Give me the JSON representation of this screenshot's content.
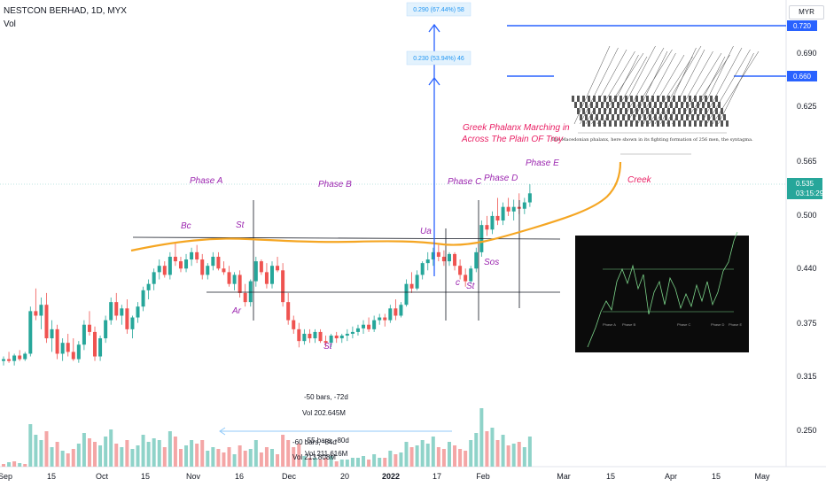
{
  "header": {
    "title": "NESTCON BERHAD, 1D, MYX",
    "vol_label": "Vol",
    "currency": "MYR"
  },
  "chart_data": {
    "type": "candlestick",
    "y_ticks": [
      "0.720",
      "0.690",
      "0.625",
      "0.565",
      "0.500",
      "0.440",
      "0.375",
      "0.315",
      "0.250"
    ],
    "x_ticks": [
      "Sep",
      "15",
      "Oct",
      "15",
      "Nov",
      "16",
      "Dec",
      "20",
      "2022",
      "17",
      "Feb",
      "Mar",
      "15",
      "Apr",
      "15",
      "May"
    ],
    "price_tags": [
      {
        "value": "0.720",
        "color": "#2962ff"
      },
      {
        "value": "0.660",
        "color": "#2962ff"
      },
      {
        "value": "0.535",
        "color": "#26a69a"
      },
      {
        "value": "03:15:29",
        "color": "#26a69a"
      }
    ],
    "candles": [
      [
        0.35,
        0.355,
        0.345,
        0.352
      ],
      [
        0.352,
        0.36,
        0.348,
        0.35
      ],
      [
        0.35,
        0.358,
        0.345,
        0.356
      ],
      [
        0.356,
        0.362,
        0.35,
        0.352
      ],
      [
        0.352,
        0.36,
        0.35,
        0.358
      ],
      [
        0.358,
        0.41,
        0.355,
        0.405
      ],
      [
        0.405,
        0.43,
        0.395,
        0.4
      ],
      [
        0.4,
        0.42,
        0.385,
        0.412
      ],
      [
        0.412,
        0.425,
        0.37,
        0.375
      ],
      [
        0.375,
        0.395,
        0.36,
        0.385
      ],
      [
        0.385,
        0.39,
        0.352,
        0.358
      ],
      [
        0.358,
        0.375,
        0.35,
        0.37
      ],
      [
        0.37,
        0.38,
        0.355,
        0.36
      ],
      [
        0.36,
        0.375,
        0.35,
        0.352
      ],
      [
        0.352,
        0.372,
        0.348,
        0.368
      ],
      [
        0.368,
        0.395,
        0.362,
        0.39
      ],
      [
        0.39,
        0.405,
        0.378,
        0.382
      ],
      [
        0.382,
        0.388,
        0.35,
        0.355
      ],
      [
        0.355,
        0.378,
        0.35,
        0.375
      ],
      [
        0.375,
        0.4,
        0.37,
        0.395
      ],
      [
        0.395,
        0.42,
        0.39,
        0.415
      ],
      [
        0.415,
        0.425,
        0.395,
        0.4
      ],
      [
        0.4,
        0.412,
        0.39,
        0.408
      ],
      [
        0.408,
        0.418,
        0.38,
        0.385
      ],
      [
        0.385,
        0.4,
        0.375,
        0.398
      ],
      [
        0.398,
        0.415,
        0.392,
        0.41
      ],
      [
        0.41,
        0.432,
        0.405,
        0.428
      ],
      [
        0.428,
        0.44,
        0.418,
        0.435
      ],
      [
        0.435,
        0.452,
        0.428,
        0.448
      ],
      [
        0.448,
        0.462,
        0.44,
        0.455
      ],
      [
        0.455,
        0.46,
        0.442,
        0.445
      ],
      [
        0.445,
        0.47,
        0.44,
        0.465
      ],
      [
        0.465,
        0.48,
        0.455,
        0.46
      ],
      [
        0.46,
        0.465,
        0.448,
        0.452
      ],
      [
        0.452,
        0.468,
        0.448,
        0.462
      ],
      [
        0.462,
        0.475,
        0.455,
        0.47
      ],
      [
        0.47,
        0.478,
        0.458,
        0.462
      ],
      [
        0.462,
        0.468,
        0.44,
        0.445
      ],
      [
        0.445,
        0.458,
        0.44,
        0.455
      ],
      [
        0.455,
        0.47,
        0.45,
        0.465
      ],
      [
        0.465,
        0.47,
        0.45,
        0.452
      ],
      [
        0.452,
        0.46,
        0.445,
        0.448
      ],
      [
        0.448,
        0.455,
        0.432,
        0.435
      ],
      [
        0.435,
        0.448,
        0.428,
        0.445
      ],
      [
        0.445,
        0.45,
        0.42,
        0.425
      ],
      [
        0.425,
        0.435,
        0.41,
        0.415
      ],
      [
        0.415,
        0.44,
        0.41,
        0.438
      ],
      [
        0.438,
        0.465,
        0.432,
        0.46
      ],
      [
        0.46,
        0.462,
        0.445,
        0.448
      ],
      [
        0.448,
        0.458,
        0.43,
        0.435
      ],
      [
        0.435,
        0.46,
        0.43,
        0.455
      ],
      [
        0.455,
        0.465,
        0.448,
        0.45
      ],
      [
        0.45,
        0.458,
        0.41,
        0.415
      ],
      [
        0.415,
        0.425,
        0.39,
        0.395
      ],
      [
        0.395,
        0.4,
        0.38,
        0.385
      ],
      [
        0.385,
        0.392,
        0.365,
        0.372
      ],
      [
        0.372,
        0.385,
        0.368,
        0.38
      ],
      [
        0.38,
        0.385,
        0.37,
        0.375
      ],
      [
        0.375,
        0.385,
        0.37,
        0.382
      ],
      [
        0.382,
        0.385,
        0.37,
        0.372
      ],
      [
        0.372,
        0.378,
        0.365,
        0.37
      ],
      [
        0.37,
        0.38,
        0.365,
        0.378
      ],
      [
        0.378,
        0.382,
        0.37,
        0.375
      ],
      [
        0.375,
        0.38,
        0.37,
        0.378
      ],
      [
        0.378,
        0.385,
        0.372,
        0.38
      ],
      [
        0.38,
        0.388,
        0.375,
        0.382
      ],
      [
        0.382,
        0.39,
        0.378,
        0.386
      ],
      [
        0.386,
        0.395,
        0.38,
        0.39
      ],
      [
        0.39,
        0.398,
        0.382,
        0.385
      ],
      [
        0.385,
        0.4,
        0.382,
        0.395
      ],
      [
        0.395,
        0.402,
        0.39,
        0.398
      ],
      [
        0.398,
        0.402,
        0.388,
        0.395
      ],
      [
        0.395,
        0.412,
        0.392,
        0.408
      ],
      [
        0.408,
        0.418,
        0.395,
        0.4
      ],
      [
        0.4,
        0.415,
        0.398,
        0.412
      ],
      [
        0.412,
        0.44,
        0.41,
        0.435
      ],
      [
        0.435,
        0.448,
        0.425,
        0.43
      ],
      [
        0.43,
        0.45,
        0.428,
        0.445
      ],
      [
        0.445,
        0.46,
        0.44,
        0.458
      ],
      [
        0.458,
        0.47,
        0.45,
        0.462
      ],
      [
        0.462,
        0.475,
        0.455,
        0.47
      ],
      [
        0.47,
        0.478,
        0.46,
        0.465
      ],
      [
        0.465,
        0.472,
        0.455,
        0.46
      ],
      [
        0.46,
        0.47,
        0.455,
        0.468
      ],
      [
        0.468,
        0.47,
        0.45,
        0.455
      ],
      [
        0.455,
        0.462,
        0.44,
        0.445
      ],
      [
        0.445,
        0.452,
        0.432,
        0.438
      ],
      [
        0.438,
        0.455,
        0.435,
        0.452
      ],
      [
        0.452,
        0.475,
        0.448,
        0.47
      ],
      [
        0.47,
        0.505,
        0.465,
        0.5
      ],
      [
        0.5,
        0.51,
        0.488,
        0.495
      ],
      [
        0.495,
        0.515,
        0.49,
        0.51
      ],
      [
        0.51,
        0.53,
        0.5,
        0.505
      ],
      [
        0.505,
        0.525,
        0.5,
        0.52
      ],
      [
        0.52,
        0.53,
        0.51,
        0.515
      ],
      [
        0.515,
        0.528,
        0.505,
        0.52
      ],
      [
        0.52,
        0.535,
        0.512,
        0.518
      ],
      [
        0.518,
        0.53,
        0.512,
        0.525
      ],
      [
        0.525,
        0.545,
        0.52,
        0.535
      ]
    ],
    "volumes": [
      [
        3,
        0
      ],
      [
        5,
        1
      ],
      [
        6,
        0
      ],
      [
        4,
        1
      ],
      [
        3,
        0
      ],
      [
        48,
        1
      ],
      [
        36,
        1
      ],
      [
        30,
        1
      ],
      [
        40,
        0
      ],
      [
        22,
        1
      ],
      [
        28,
        0
      ],
      [
        18,
        1
      ],
      [
        15,
        0
      ],
      [
        20,
        0
      ],
      [
        26,
        1
      ],
      [
        38,
        1
      ],
      [
        32,
        0
      ],
      [
        28,
        0
      ],
      [
        24,
        1
      ],
      [
        34,
        1
      ],
      [
        42,
        1
      ],
      [
        26,
        0
      ],
      [
        22,
        1
      ],
      [
        30,
        0
      ],
      [
        20,
        1
      ],
      [
        24,
        1
      ],
      [
        36,
        1
      ],
      [
        28,
        1
      ],
      [
        32,
        1
      ],
      [
        30,
        1
      ],
      [
        22,
        0
      ],
      [
        40,
        1
      ],
      [
        34,
        0
      ],
      [
        20,
        0
      ],
      [
        24,
        1
      ],
      [
        30,
        1
      ],
      [
        26,
        0
      ],
      [
        30,
        0
      ],
      [
        18,
        1
      ],
      [
        22,
        1
      ],
      [
        20,
        0
      ],
      [
        16,
        0
      ],
      [
        22,
        0
      ],
      [
        14,
        1
      ],
      [
        24,
        0
      ],
      [
        18,
        0
      ],
      [
        20,
        1
      ],
      [
        30,
        1
      ],
      [
        16,
        0
      ],
      [
        22,
        0
      ],
      [
        20,
        1
      ],
      [
        14,
        0
      ],
      [
        36,
        0
      ],
      [
        30,
        0
      ],
      [
        22,
        0
      ],
      [
        26,
        0
      ],
      [
        12,
        1
      ],
      [
        10,
        0
      ],
      [
        10,
        1
      ],
      [
        8,
        0
      ],
      [
        10,
        0
      ],
      [
        12,
        1
      ],
      [
        6,
        0
      ],
      [
        8,
        1
      ],
      [
        8,
        1
      ],
      [
        10,
        1
      ],
      [
        10,
        1
      ],
      [
        12,
        1
      ],
      [
        8,
        0
      ],
      [
        14,
        1
      ],
      [
        10,
        1
      ],
      [
        10,
        0
      ],
      [
        18,
        1
      ],
      [
        14,
        0
      ],
      [
        16,
        1
      ],
      [
        28,
        1
      ],
      [
        22,
        0
      ],
      [
        24,
        1
      ],
      [
        30,
        1
      ],
      [
        26,
        1
      ],
      [
        34,
        1
      ],
      [
        22,
        0
      ],
      [
        20,
        0
      ],
      [
        28,
        1
      ],
      [
        24,
        0
      ],
      [
        20,
        0
      ],
      [
        18,
        0
      ],
      [
        30,
        1
      ],
      [
        38,
        1
      ],
      [
        66,
        1
      ],
      [
        40,
        0
      ],
      [
        44,
        1
      ],
      [
        30,
        0
      ],
      [
        36,
        1
      ],
      [
        24,
        0
      ],
      [
        26,
        1
      ],
      [
        28,
        0
      ],
      [
        22,
        1
      ],
      [
        34,
        1
      ]
    ],
    "annotations": {
      "phases": [
        "Phase A",
        "Phase B",
        "Phase C",
        "Phase D",
        "Phase E"
      ],
      "events": [
        "Bc",
        "St",
        "Ar",
        "St",
        "Ua",
        "c",
        "St",
        "Sos"
      ],
      "creek": "Creek",
      "greek_text": "Greek Phalanx Marching in\nAcross The Plain OF Troy",
      "targets": [
        "0.290 (67.44%) 58",
        "0.230 (53.94%) 46"
      ],
      "measures": [
        {
          "line1": "-50 bars, -72d",
          "line2": "Vol 202.645M"
        },
        {
          "line1": "-60 bars, -84d",
          "line2": "Vol 213.808M"
        },
        {
          "line1": "-55 bars, -80d",
          "line2": "Vol 211.616M"
        }
      ],
      "inset_caption": "The Macedonian phalanx, here shown in its fighting formation of 256 men, the syntagma.",
      "inset_phase_labels": [
        "Phase A",
        "Phase B",
        "Phase C",
        "Phase D",
        "Phase E"
      ]
    }
  }
}
